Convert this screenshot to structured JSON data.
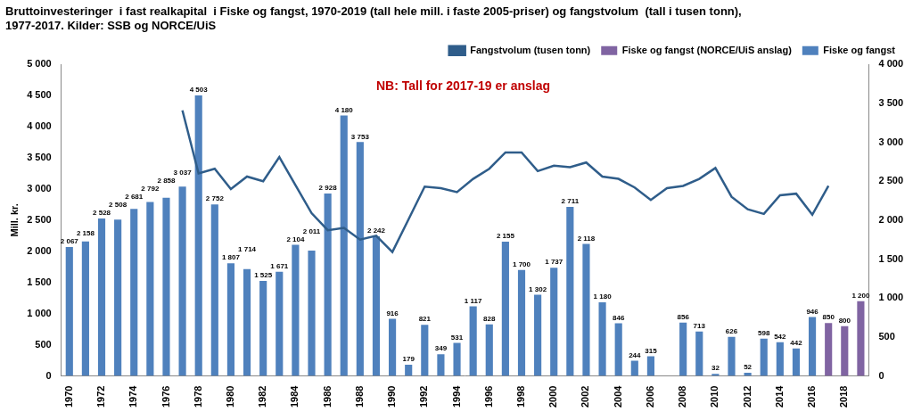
{
  "chart_data": {
    "type": "bar",
    "title": [
      "Bruttoinvesteringer  i fast realkapital  i Fiske og fangst, 1970-2019 (tall hele mill. i faste 2005-priser) og fangstvolum  (tall i tusen tonn),",
      "1977-2017. Kilder: SSB og NORCE/UiS"
    ],
    "annotations": [
      "NB: Tall for 2017-19 er anslag"
    ],
    "y_label": "Mill. kr.",
    "categories": [
      "1970",
      null,
      "1972",
      null,
      "1974",
      null,
      "1976",
      null,
      "1978",
      null,
      "1980",
      null,
      "1982",
      null,
      "1984",
      null,
      "1986",
      null,
      "1988",
      null,
      "1990",
      null,
      "1992",
      null,
      "1994",
      null,
      "1996",
      null,
      "1998",
      null,
      "2000",
      null,
      "2002",
      null,
      "2004",
      null,
      "2006",
      null,
      "2008",
      null,
      "2010",
      null,
      "2012",
      null,
      "2014",
      null,
      "2016",
      null,
      "2018",
      null
    ],
    "series": [
      {
        "name": "Fiske og fangst (NORCE/UiS anslag)",
        "type": "bar",
        "color": "#8064a2",
        "values": [
          null,
          null,
          null,
          null,
          null,
          null,
          null,
          null,
          null,
          null,
          null,
          null,
          null,
          null,
          null,
          null,
          null,
          null,
          null,
          null,
          null,
          null,
          null,
          null,
          null,
          null,
          null,
          null,
          null,
          null,
          null,
          null,
          null,
          null,
          null,
          null,
          null,
          null,
          null,
          null,
          null,
          null,
          null,
          null,
          null,
          null,
          null,
          850,
          800,
          1200
        ],
        "value_labels": [
          null,
          null,
          null,
          null,
          null,
          null,
          null,
          null,
          null,
          null,
          null,
          null,
          null,
          null,
          null,
          null,
          null,
          null,
          null,
          null,
          null,
          null,
          null,
          null,
          null,
          null,
          null,
          null,
          null,
          null,
          null,
          null,
          null,
          null,
          null,
          null,
          null,
          null,
          null,
          null,
          null,
          null,
          null,
          null,
          null,
          null,
          null,
          "850",
          "800",
          "1 200"
        ]
      },
      {
        "name": "Fiske og fangst",
        "type": "bar",
        "color": "#4f81bd",
        "values": [
          2067,
          2158,
          2528,
          2508,
          2681,
          2792,
          2858,
          3037,
          4503,
          2752,
          1807,
          1714,
          1525,
          1671,
          2104,
          2011,
          2928,
          4180,
          3753,
          2242,
          916,
          179,
          821,
          349,
          531,
          1117,
          828,
          2155,
          1700,
          1302,
          1737,
          2711,
          2118,
          1180,
          846,
          244,
          315,
          null,
          856,
          713,
          32,
          626,
          52,
          598,
          542,
          442,
          946,
          null,
          null,
          null
        ],
        "value_labels": [
          "2 067",
          "2 158",
          "2 528",
          "2 508",
          "2 681",
          "2 792",
          "2 858",
          "3 037",
          "4 503",
          "2 752",
          "1 807",
          "1 714",
          "1 525",
          "1 671",
          "2 104",
          "2 011",
          "2 928",
          "4 180",
          "3 753",
          "2 242",
          "916",
          "179",
          "821",
          "349",
          "531",
          "1 117",
          "828",
          "2 155",
          "1 700",
          "1 302",
          "1 737",
          "2 711",
          "2 118",
          "1 180",
          "846",
          "244",
          "315",
          null,
          "856",
          "713",
          "32",
          "626",
          "52",
          "598",
          "542",
          "442",
          "946",
          null,
          null,
          null
        ]
      },
      {
        "name": "Fangstvolum (tusen tonn)",
        "type": "line",
        "axis": "y2",
        "color": "#2f5d8a",
        "marker": "none",
        "line_style": "solid",
        "values": [
          null,
          null,
          null,
          null,
          null,
          null,
          null,
          3410,
          2600,
          2660,
          2400,
          2560,
          2500,
          2810,
          2450,
          2090,
          1870,
          1900,
          1750,
          1800,
          1590,
          2010,
          2430,
          2410,
          2360,
          2530,
          2660,
          2870,
          2870,
          2630,
          2700,
          2680,
          2740,
          2560,
          2530,
          2420,
          2260,
          2410,
          2440,
          2530,
          2670,
          2300,
          2140,
          2080,
          2320,
          2340,
          2070,
          2440,
          null,
          null
        ]
      }
    ],
    "ylim": [
      0,
      5000
    ],
    "yticks": [
      0,
      500,
      {
        "value": 1000,
        "label": "1 000"
      },
      {
        "value": 1500,
        "label": "1 500"
      },
      {
        "value": 2000,
        "label": "2 000"
      },
      {
        "value": 2500,
        "label": "2 500"
      },
      {
        "value": 3000,
        "label": "3 000"
      },
      {
        "value": 3500,
        "label": "3 500"
      },
      {
        "value": 4000,
        "label": "4 000"
      },
      {
        "value": 4500,
        "label": "4 500"
      },
      {
        "value": 5000,
        "label": "5 000"
      }
    ],
    "y2lim": [
      0,
      4000
    ],
    "y2ticks": [
      0,
      500,
      {
        "value": 1000,
        "label": "1 000"
      },
      {
        "value": 1500,
        "label": "1 500"
      },
      {
        "value": 2000,
        "label": "2 000"
      },
      {
        "value": 2500,
        "label": "2 500"
      },
      {
        "value": 3000,
        "label": "3 000"
      },
      {
        "value": 3500,
        "label": "3 500"
      },
      {
        "value": 4000,
        "label": "4 000"
      }
    ],
    "grid": false,
    "legend": "upper-right",
    "data_labels": true
  }
}
